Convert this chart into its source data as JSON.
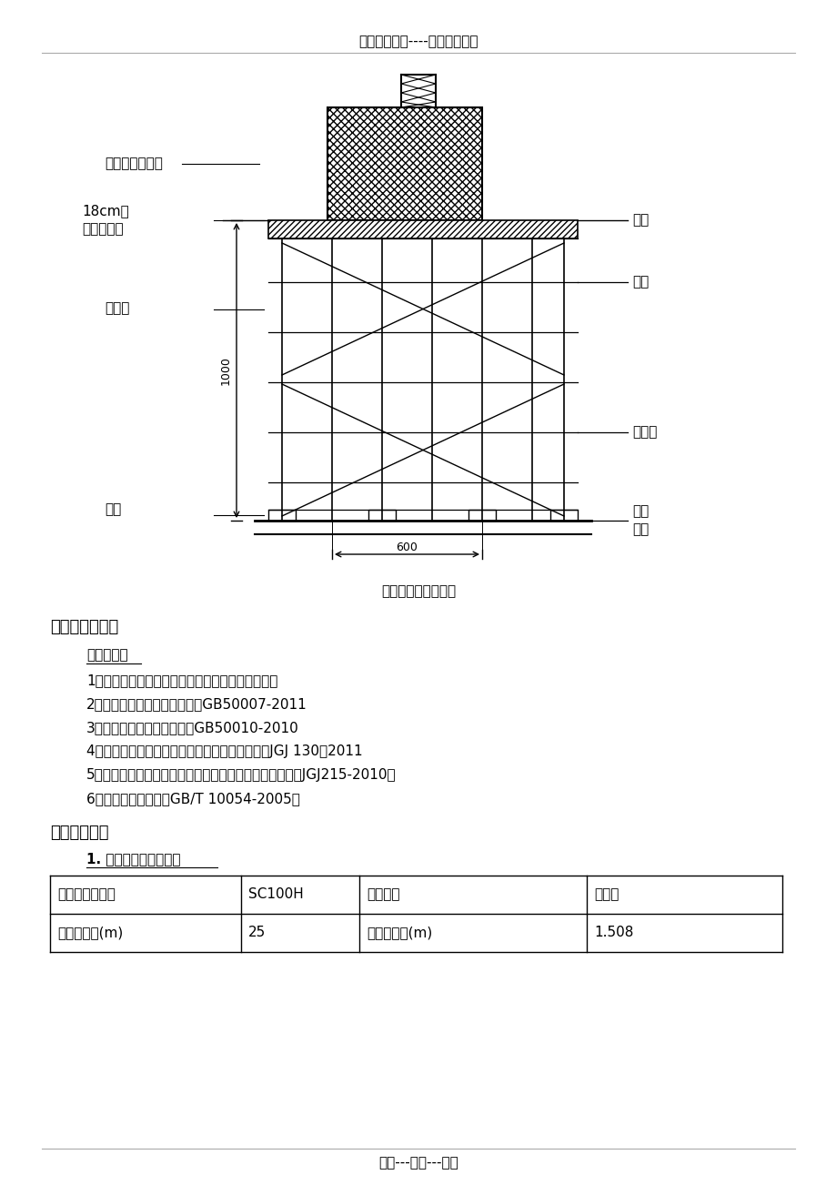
{
  "header_text": "精选优质文档----倾情为你奉上",
  "footer_text": "专心---专注---专业",
  "diagram_caption": "脚手架支撑立面简图",
  "section_title": "四、承重架验算",
  "calc_basis_title": "计算依据：",
  "references": [
    "1、《施工现场设施安全设计计算手册》谢建民编著",
    "2、《建筑地基基础设计规范》GB50007-2011",
    "3、《混凝土结构设计规范》GB50010-2010",
    "4、《建筑施工扣件式钢管脚手架安全技术规范》JGJ 130－2011",
    "5、《建筑施工升降机安装、使用、拆卸安全技术规程》（JGJ215-2010）",
    "6、《施工升降机》（GB/T 10054-2005）"
  ],
  "section2_title": "一、参数信息",
  "subsection_title": "1. 施工升降机基本参数",
  "table_row1": [
    "施工升降机型号",
    "SC100H",
    "吊笼形式",
    "单吊笼"
  ],
  "table_row2": [
    "架设总高度(m)",
    "25",
    "标准节长度(m)",
    "1.508"
  ],
  "bg_color": "#ffffff"
}
